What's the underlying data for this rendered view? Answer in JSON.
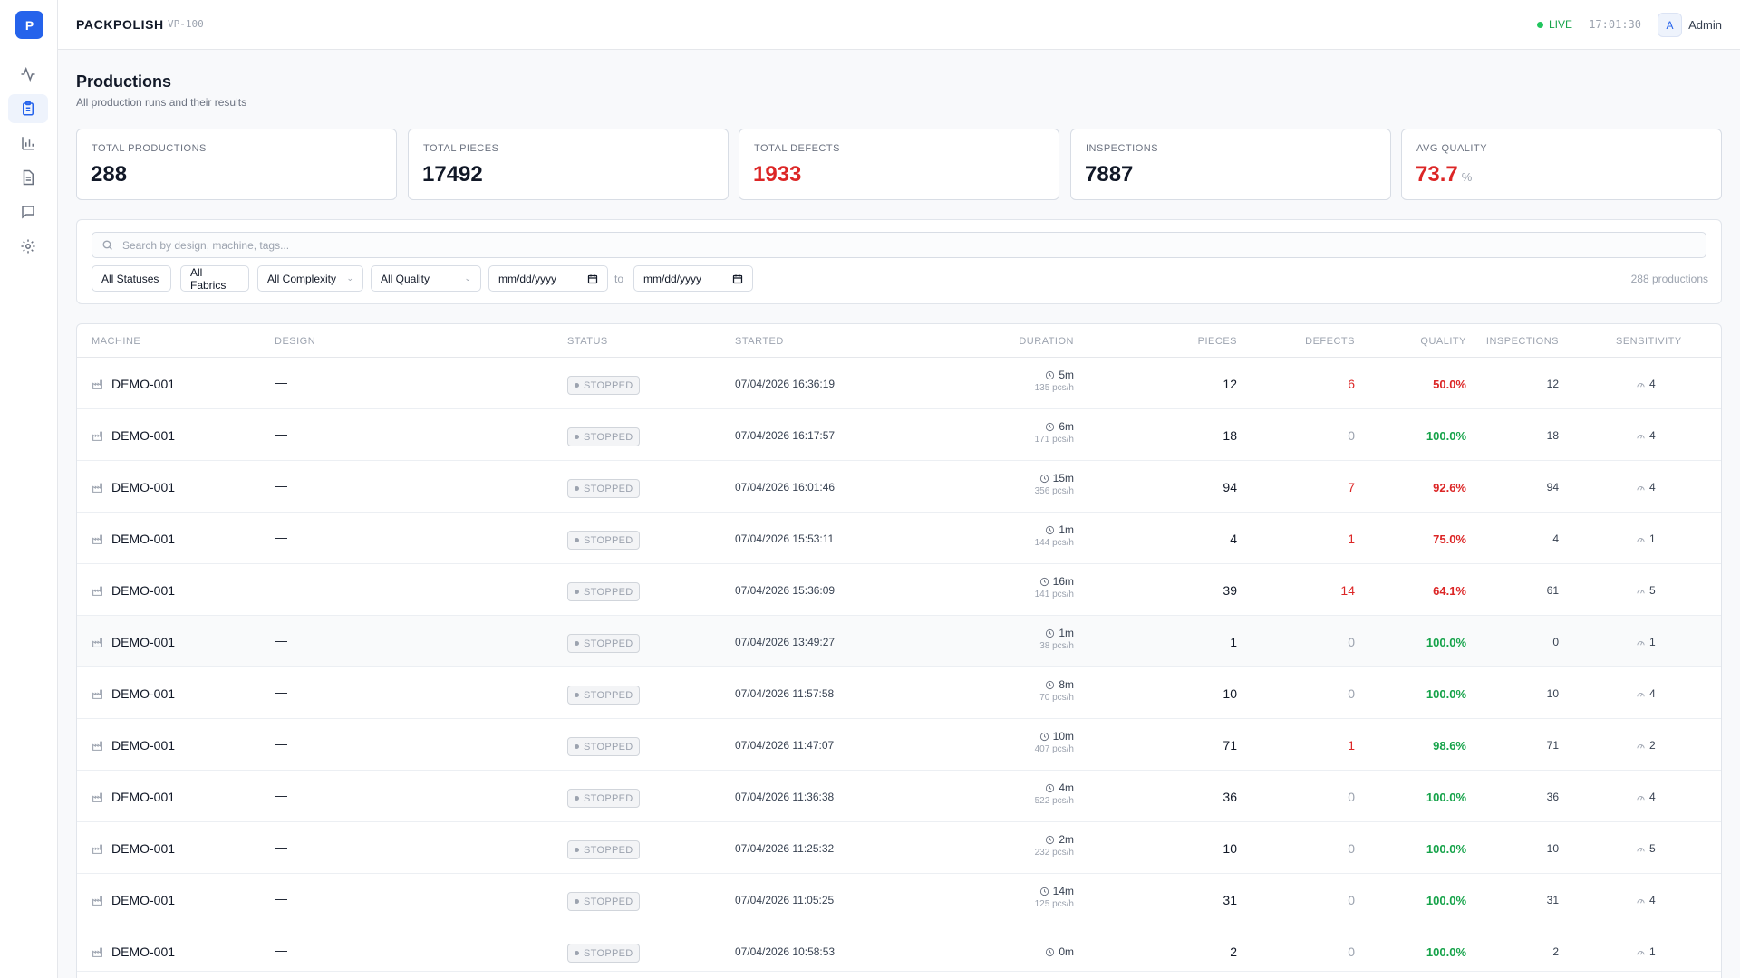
{
  "app": {
    "logo_letter": "P",
    "brand": "PACKPOLISH",
    "model": "VP-100"
  },
  "topbar": {
    "live_label": "LIVE",
    "clock": "17:01:30",
    "avatar_letter": "A",
    "user_name": "Admin"
  },
  "sidebar": {
    "items": [
      {
        "icon": "activity-icon",
        "active": false
      },
      {
        "icon": "clipboard-icon",
        "active": true
      },
      {
        "icon": "bar-chart-icon",
        "active": false
      },
      {
        "icon": "document-icon",
        "active": false
      },
      {
        "icon": "message-icon",
        "active": false
      },
      {
        "icon": "gear-icon",
        "active": false
      }
    ]
  },
  "page": {
    "title": "Productions",
    "subtitle": "All production runs and their results"
  },
  "stats": [
    {
      "label": "TOTAL PRODUCTIONS",
      "value": "288",
      "unit": "",
      "color": "#111827"
    },
    {
      "label": "TOTAL PIECES",
      "value": "17492",
      "unit": "",
      "color": "#111827"
    },
    {
      "label": "TOTAL DEFECTS",
      "value": "1933",
      "unit": "",
      "color": "#dc2626"
    },
    {
      "label": "INSPECTIONS",
      "value": "7887",
      "unit": "",
      "color": "#111827"
    },
    {
      "label": "AVG QUALITY",
      "value": "73.7",
      "unit": "%",
      "color": "#dc2626"
    }
  ],
  "filters": {
    "search_placeholder": "Search by design, machine, tags...",
    "status": "All Statuses",
    "fabrics": "All Fabrics",
    "complexity": "All Complexity",
    "quality": "All Quality",
    "date_from": "mm/dd/yyyy",
    "to_label": "to",
    "date_to": "mm/dd/yyyy",
    "count": "288 productions"
  },
  "table": {
    "headers": {
      "machine": "MACHINE",
      "design": "DESIGN",
      "status": "STATUS",
      "started": "STARTED",
      "duration": "DURATION",
      "pieces": "PIECES",
      "defects": "DEFECTS",
      "quality": "QUALITY",
      "inspections": "INSPECTIONS",
      "sensitivity": "SENSITIVITY"
    },
    "rows": [
      {
        "machine": "DEMO-001",
        "design": "—",
        "status": "STOPPED",
        "started": "07/04/2026 16:36:19",
        "duration": "5m",
        "rate": "135 pcs/h",
        "pieces": "12",
        "defects": "6",
        "quality": "50.0%",
        "inspections": "12",
        "sensitivity": "4"
      },
      {
        "machine": "DEMO-001",
        "design": "—",
        "status": "STOPPED",
        "started": "07/04/2026 16:17:57",
        "duration": "6m",
        "rate": "171 pcs/h",
        "pieces": "18",
        "defects": "0",
        "quality": "100.0%",
        "inspections": "18",
        "sensitivity": "4"
      },
      {
        "machine": "DEMO-001",
        "design": "—",
        "status": "STOPPED",
        "started": "07/04/2026 16:01:46",
        "duration": "15m",
        "rate": "356 pcs/h",
        "pieces": "94",
        "defects": "7",
        "quality": "92.6%",
        "inspections": "94",
        "sensitivity": "4"
      },
      {
        "machine": "DEMO-001",
        "design": "—",
        "status": "STOPPED",
        "started": "07/04/2026 15:53:11",
        "duration": "1m",
        "rate": "144 pcs/h",
        "pieces": "4",
        "defects": "1",
        "quality": "75.0%",
        "inspections": "4",
        "sensitivity": "1"
      },
      {
        "machine": "DEMO-001",
        "design": "—",
        "status": "STOPPED",
        "started": "07/04/2026 15:36:09",
        "duration": "16m",
        "rate": "141 pcs/h",
        "pieces": "39",
        "defects": "14",
        "quality": "64.1%",
        "inspections": "61",
        "sensitivity": "5"
      },
      {
        "machine": "DEMO-001",
        "design": "—",
        "status": "STOPPED",
        "started": "07/04/2026 13:49:27",
        "duration": "1m",
        "rate": "38 pcs/h",
        "pieces": "1",
        "defects": "0",
        "quality": "100.0%",
        "inspections": "0",
        "sensitivity": "1"
      },
      {
        "machine": "DEMO-001",
        "design": "—",
        "status": "STOPPED",
        "started": "07/04/2026 11:57:58",
        "duration": "8m",
        "rate": "70 pcs/h",
        "pieces": "10",
        "defects": "0",
        "quality": "100.0%",
        "inspections": "10",
        "sensitivity": "4"
      },
      {
        "machine": "DEMO-001",
        "design": "—",
        "status": "STOPPED",
        "started": "07/04/2026 11:47:07",
        "duration": "10m",
        "rate": "407 pcs/h",
        "pieces": "71",
        "defects": "1",
        "quality": "98.6%",
        "inspections": "71",
        "sensitivity": "2"
      },
      {
        "machine": "DEMO-001",
        "design": "—",
        "status": "STOPPED",
        "started": "07/04/2026 11:36:38",
        "duration": "4m",
        "rate": "522 pcs/h",
        "pieces": "36",
        "defects": "0",
        "quality": "100.0%",
        "inspections": "36",
        "sensitivity": "4"
      },
      {
        "machine": "DEMO-001",
        "design": "—",
        "status": "STOPPED",
        "started": "07/04/2026 11:25:32",
        "duration": "2m",
        "rate": "232 pcs/h",
        "pieces": "10",
        "defects": "0",
        "quality": "100.0%",
        "inspections": "10",
        "sensitivity": "5"
      },
      {
        "machine": "DEMO-001",
        "design": "—",
        "status": "STOPPED",
        "started": "07/04/2026 11:05:25",
        "duration": "14m",
        "rate": "125 pcs/h",
        "pieces": "31",
        "defects": "0",
        "quality": "100.0%",
        "inspections": "31",
        "sensitivity": "4"
      },
      {
        "machine": "DEMO-001",
        "design": "—",
        "status": "STOPPED",
        "started": "07/04/2026 10:58:53",
        "duration": "0m",
        "rate": "",
        "pieces": "2",
        "defects": "0",
        "quality": "100.0%",
        "inspections": "2",
        "sensitivity": "1"
      }
    ]
  },
  "colors": {
    "accent": "#2563eb",
    "good": "#16a34a",
    "bad": "#dc2626",
    "muted": "#9ca3af"
  }
}
